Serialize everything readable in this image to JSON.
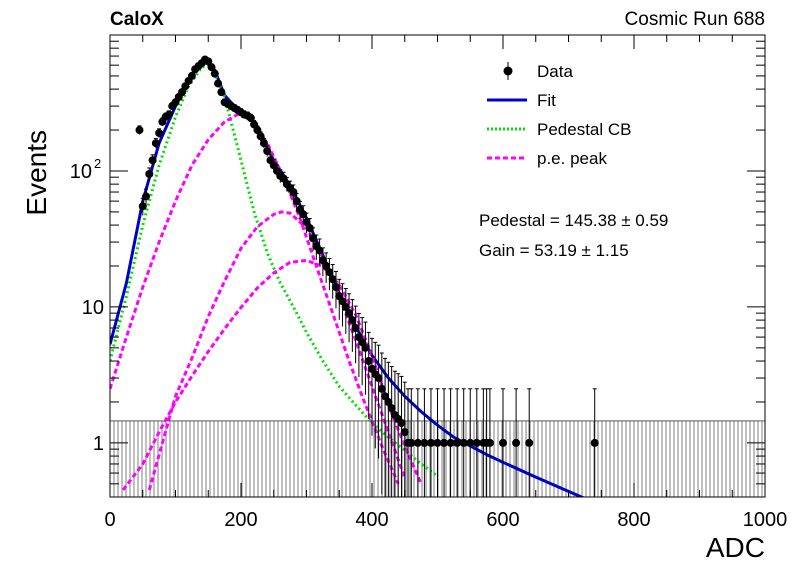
{
  "header": {
    "left": "CaloX",
    "right": "Cosmic Run 688"
  },
  "chart_data": {
    "type": "scatter",
    "xlabel": "ADC",
    "ylabel": "Events",
    "xlim": [
      0,
      1000
    ],
    "ylim": [
      0.4,
      1000
    ],
    "yscale": "log",
    "grid": false,
    "legend_position": "top-right",
    "x_ticks": [
      {
        "v": 0,
        "label": "0"
      },
      {
        "v": 200,
        "label": "200"
      },
      {
        "v": 400,
        "label": "400"
      },
      {
        "v": 600,
        "label": "600"
      },
      {
        "v": 800,
        "label": "800"
      },
      {
        "v": 1000,
        "label": "1000"
      }
    ],
    "y_ticks": [
      {
        "v": 1,
        "label": "1"
      },
      {
        "v": 10,
        "label": "10"
      },
      {
        "v": 100,
        "label": "10",
        "sup": "2"
      }
    ],
    "legend": [
      {
        "label": "Data",
        "style": "marker"
      },
      {
        "label": "Fit",
        "style": "solid",
        "color": "#0000cc"
      },
      {
        "label": "Pedestal CB",
        "style": "dotted",
        "color": "#00dd00"
      },
      {
        "label": "p.e. peak",
        "style": "dashed",
        "color": "#ff00ff"
      }
    ],
    "annotations": [
      "Pedestal = 145.38 ± 0.59",
      "Gain = 53.19 ± 1.15"
    ],
    "fit_params": {
      "pedestal": 145.38,
      "pedestal_err": 0.59,
      "gain": 53.19,
      "gain_err": 1.15
    },
    "series": [
      {
        "name": "Data",
        "color": "#000000",
        "points": [
          [
            45,
            200
          ],
          [
            50,
            55
          ],
          [
            55,
            65
          ],
          [
            60,
            95
          ],
          [
            65,
            120
          ],
          [
            70,
            160
          ],
          [
            75,
            190
          ],
          [
            80,
            230
          ],
          [
            85,
            250
          ],
          [
            90,
            260
          ],
          [
            95,
            300
          ],
          [
            100,
            320
          ],
          [
            105,
            350
          ],
          [
            110,
            380
          ],
          [
            115,
            420
          ],
          [
            120,
            460
          ],
          [
            125,
            500
          ],
          [
            130,
            560
          ],
          [
            135,
            590
          ],
          [
            140,
            620
          ],
          [
            145,
            660
          ],
          [
            150,
            640
          ],
          [
            155,
            580
          ],
          [
            160,
            520
          ],
          [
            165,
            440
          ],
          [
            170,
            380
          ],
          [
            175,
            320
          ],
          [
            180,
            310
          ],
          [
            185,
            300
          ],
          [
            190,
            290
          ],
          [
            195,
            280
          ],
          [
            200,
            270
          ],
          [
            205,
            260
          ],
          [
            210,
            255
          ],
          [
            215,
            245
          ],
          [
            220,
            220
          ],
          [
            225,
            200
          ],
          [
            230,
            180
          ],
          [
            235,
            160
          ],
          [
            240,
            140
          ],
          [
            245,
            120
          ],
          [
            250,
            110
          ],
          [
            255,
            100
          ],
          [
            260,
            92
          ],
          [
            265,
            88
          ],
          [
            270,
            80
          ],
          [
            275,
            75
          ],
          [
            280,
            70
          ],
          [
            285,
            60
          ],
          [
            290,
            52
          ],
          [
            295,
            48
          ],
          [
            300,
            42
          ],
          [
            305,
            38
          ],
          [
            310,
            32
          ],
          [
            315,
            28
          ],
          [
            320,
            26
          ],
          [
            325,
            22
          ],
          [
            330,
            20
          ],
          [
            335,
            18
          ],
          [
            340,
            16
          ],
          [
            345,
            14
          ],
          [
            350,
            12
          ],
          [
            355,
            11
          ],
          [
            360,
            10
          ],
          [
            365,
            9
          ],
          [
            370,
            8
          ],
          [
            375,
            7
          ],
          [
            380,
            6
          ],
          [
            385,
            5.5
          ],
          [
            390,
            5
          ],
          [
            395,
            4
          ],
          [
            400,
            3.5
          ],
          [
            405,
            3.2
          ],
          [
            410,
            3
          ],
          [
            415,
            2.5
          ],
          [
            420,
            2.2
          ],
          [
            425,
            2
          ],
          [
            430,
            1.8
          ],
          [
            435,
            1.6
          ],
          [
            440,
            1.5
          ],
          [
            445,
            1.4
          ],
          [
            450,
            1.2
          ],
          [
            455,
            1
          ],
          [
            460,
            1
          ],
          [
            470,
            1
          ],
          [
            480,
            1
          ],
          [
            490,
            1
          ],
          [
            500,
            1
          ],
          [
            510,
            1
          ],
          [
            520,
            1
          ],
          [
            530,
            1
          ],
          [
            540,
            1
          ],
          [
            550,
            1
          ],
          [
            560,
            1
          ],
          [
            570,
            1
          ],
          [
            575,
            1
          ],
          [
            580,
            1
          ],
          [
            600,
            1
          ],
          [
            620,
            1
          ],
          [
            640,
            1
          ],
          [
            740,
            1
          ]
        ]
      },
      {
        "name": "Fit",
        "color": "#0000cc",
        "points": [
          [
            0,
            5.3
          ],
          [
            25,
            15
          ],
          [
            50,
            60
          ],
          [
            75,
            160
          ],
          [
            100,
            300
          ],
          [
            125,
            510
          ],
          [
            145,
            660
          ],
          [
            160,
            550
          ],
          [
            175,
            360
          ],
          [
            190,
            300
          ],
          [
            210,
            260
          ],
          [
            230,
            185
          ],
          [
            250,
            120
          ],
          [
            275,
            78
          ],
          [
            300,
            45
          ],
          [
            325,
            24
          ],
          [
            350,
            12.5
          ],
          [
            375,
            7.2
          ],
          [
            400,
            4.4
          ],
          [
            425,
            3
          ],
          [
            450,
            2.2
          ],
          [
            475,
            1.7
          ],
          [
            500,
            1.35
          ],
          [
            525,
            1.1
          ],
          [
            550,
            0.95
          ],
          [
            575,
            0.82
          ],
          [
            600,
            0.72
          ],
          [
            650,
            0.56
          ],
          [
            700,
            0.44
          ],
          [
            760,
            0.33
          ]
        ]
      },
      {
        "name": "Pedestal CB",
        "color": "#00dd00",
        "points": [
          [
            0,
            4
          ],
          [
            25,
            12
          ],
          [
            50,
            40
          ],
          [
            75,
            110
          ],
          [
            100,
            250
          ],
          [
            120,
            420
          ],
          [
            140,
            580
          ],
          [
            150,
            600
          ],
          [
            160,
            520
          ],
          [
            175,
            350
          ],
          [
            200,
            120
          ],
          [
            220,
            50
          ],
          [
            240,
            25
          ],
          [
            260,
            15
          ],
          [
            280,
            10
          ],
          [
            300,
            6.5
          ],
          [
            325,
            4
          ],
          [
            350,
            2.6
          ],
          [
            375,
            1.9
          ],
          [
            400,
            1.4
          ],
          [
            425,
            1.1
          ],
          [
            450,
            0.88
          ],
          [
            475,
            0.7
          ],
          [
            500,
            0.57
          ]
        ]
      },
      {
        "name": "p.e. peak 1",
        "color": "#ff00ff",
        "points": [
          [
            0,
            2.5
          ],
          [
            25,
            6
          ],
          [
            50,
            14
          ],
          [
            75,
            30
          ],
          [
            100,
            60
          ],
          [
            125,
            110
          ],
          [
            150,
            170
          ],
          [
            175,
            230
          ],
          [
            195,
            260
          ],
          [
            215,
            240
          ],
          [
            240,
            160
          ],
          [
            265,
            90
          ],
          [
            290,
            45
          ],
          [
            315,
            20
          ],
          [
            340,
            9
          ],
          [
            365,
            4
          ],
          [
            390,
            1.9
          ],
          [
            415,
            0.95
          ],
          [
            440,
            0.5
          ]
        ]
      },
      {
        "name": "p.e. peak 2",
        "color": "#ff00ff",
        "points": [
          [
            60,
            0.45
          ],
          [
            80,
            1
          ],
          [
            100,
            2.2
          ],
          [
            125,
            4.2
          ],
          [
            150,
            8.5
          ],
          [
            175,
            15.5
          ],
          [
            200,
            27
          ],
          [
            225,
            39
          ],
          [
            250,
            48
          ],
          [
            262,
            50
          ],
          [
            275,
            49
          ],
          [
            300,
            38
          ],
          [
            325,
            23
          ],
          [
            350,
            12
          ],
          [
            375,
            5.7
          ],
          [
            400,
            2.6
          ],
          [
            425,
            1.2
          ],
          [
            450,
            0.55
          ]
        ]
      },
      {
        "name": "p.e. peak 3",
        "color": "#ff00ff",
        "points": [
          [
            20,
            0.45
          ],
          [
            50,
            0.7
          ],
          [
            75,
            1.2
          ],
          [
            100,
            2
          ],
          [
            125,
            3.1
          ],
          [
            150,
            4.7
          ],
          [
            175,
            6.9
          ],
          [
            200,
            9.9
          ],
          [
            225,
            13.8
          ],
          [
            250,
            17.8
          ],
          [
            275,
            21.3
          ],
          [
            300,
            22
          ],
          [
            325,
            19.8
          ],
          [
            350,
            14.5
          ],
          [
            375,
            8.8
          ],
          [
            400,
            4.4
          ],
          [
            425,
            1.9
          ],
          [
            450,
            0.95
          ],
          [
            475,
            0.5
          ]
        ]
      }
    ]
  }
}
